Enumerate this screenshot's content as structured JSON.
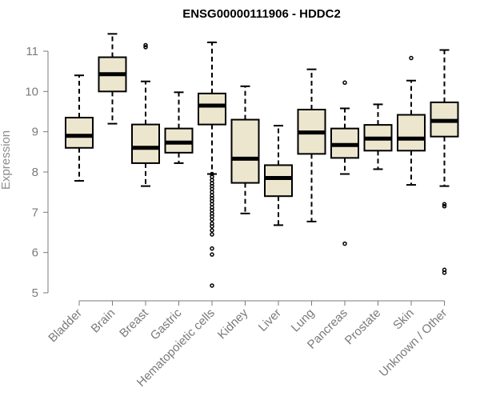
{
  "chart_data": {
    "type": "boxplot",
    "title": "ENSG00000111906 - HDDC2",
    "ylabel": "Expression",
    "xlabel": "",
    "ylim": [
      5,
      11
    ],
    "yticks": [
      5,
      6,
      7,
      8,
      9,
      10,
      11
    ],
    "colors": {
      "box_fill": "#ede6cf",
      "stroke": "#000000",
      "axis": "#7a7a7a"
    },
    "categories": [
      "Bladder",
      "Brain",
      "Breast",
      "Gastric",
      "Hematopoietic cells",
      "Kidney",
      "Liver",
      "Lung",
      "Pancreas",
      "Prostate",
      "Skin",
      "Unknown / Other"
    ],
    "boxes": [
      {
        "name": "Bladder",
        "whisker_low": 7.78,
        "q1": 8.6,
        "median": 8.9,
        "q3": 9.35,
        "whisker_high": 10.4,
        "outliers": []
      },
      {
        "name": "Brain",
        "whisker_low": 9.2,
        "q1": 10.0,
        "median": 10.43,
        "q3": 10.85,
        "whisker_high": 11.43,
        "outliers": []
      },
      {
        "name": "Breast",
        "whisker_low": 7.65,
        "q1": 8.22,
        "median": 8.6,
        "q3": 9.18,
        "whisker_high": 10.25,
        "outliers": [
          11.1,
          11.15
        ]
      },
      {
        "name": "Gastric",
        "whisker_low": 8.22,
        "q1": 8.48,
        "median": 8.73,
        "q3": 9.08,
        "whisker_high": 9.98,
        "outliers": []
      },
      {
        "name": "Hematopoietic cells",
        "whisker_low": 7.95,
        "q1": 9.18,
        "median": 9.65,
        "q3": 9.95,
        "whisker_high": 11.22,
        "outliers": [
          7.95,
          7.88,
          7.8,
          7.72,
          7.65,
          7.58,
          7.5,
          7.42,
          7.35,
          7.28,
          7.2,
          7.12,
          7.05,
          6.97,
          6.9,
          6.82,
          6.72,
          6.65,
          6.55,
          6.45,
          6.1,
          5.95,
          5.18
        ]
      },
      {
        "name": "Kidney",
        "whisker_low": 6.97,
        "q1": 7.73,
        "median": 8.33,
        "q3": 9.3,
        "whisker_high": 10.13,
        "outliers": []
      },
      {
        "name": "Liver",
        "whisker_low": 6.68,
        "q1": 7.4,
        "median": 7.85,
        "q3": 8.17,
        "whisker_high": 9.15,
        "outliers": []
      },
      {
        "name": "Lung",
        "whisker_low": 6.77,
        "q1": 8.45,
        "median": 8.98,
        "q3": 9.55,
        "whisker_high": 10.55,
        "outliers": []
      },
      {
        "name": "Pancreas",
        "whisker_low": 7.95,
        "q1": 8.35,
        "median": 8.67,
        "q3": 9.08,
        "whisker_high": 9.58,
        "outliers": [
          10.22,
          6.22
        ]
      },
      {
        "name": "Prostate",
        "whisker_low": 8.07,
        "q1": 8.53,
        "median": 8.83,
        "q3": 9.17,
        "whisker_high": 9.68,
        "outliers": []
      },
      {
        "name": "Skin",
        "whisker_low": 7.68,
        "q1": 8.53,
        "median": 8.83,
        "q3": 9.42,
        "whisker_high": 10.27,
        "outliers": [
          10.83
        ]
      },
      {
        "name": "Unknown / Other",
        "whisker_low": 7.65,
        "q1": 8.88,
        "median": 9.27,
        "q3": 9.73,
        "whisker_high": 11.03,
        "outliers": [
          7.2,
          7.15,
          5.57,
          5.5
        ]
      }
    ]
  }
}
